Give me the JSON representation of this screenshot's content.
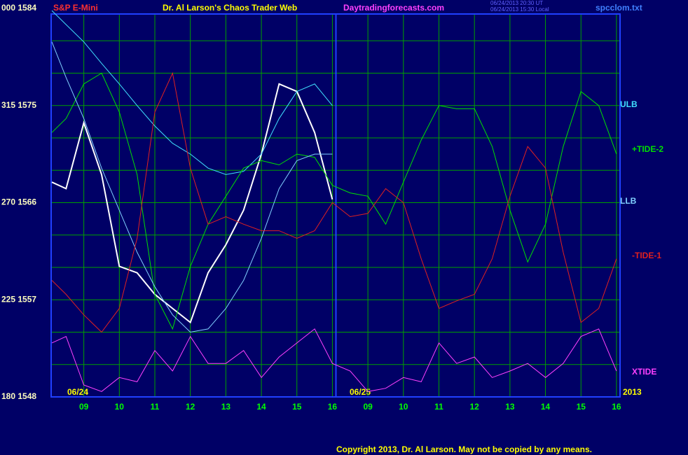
{
  "chart_data": {
    "type": "line",
    "header": {
      "symbol": "S&P E-Mini",
      "title": "Dr. Al Larson's Chaos Trader Web",
      "site": "Daytradingforecasts.com",
      "stamp_ut": "06/24/2013 20:30 UT",
      "stamp_local": "06/24/2013 15:30 Local",
      "file": "spcclom.txt"
    },
    "copyright": "Copyright 2013, Dr. Al Larson. May not be copied by any means.",
    "date_labels": [
      "06/24",
      "06/25",
      "2013"
    ],
    "x": [
      -0.9,
      -0.5,
      0,
      0.5,
      1,
      1.5,
      2,
      2.5,
      3,
      3.5,
      4,
      4.5,
      5,
      5.5,
      6,
      6.5,
      7,
      7.5,
      8,
      8.5,
      9,
      9.5,
      10,
      10.5,
      11,
      11.5,
      12,
      12.5,
      13,
      13.5,
      14,
      14.5,
      15
    ],
    "xlim": [
      -0.92,
      15.1
    ],
    "xticks": [
      {
        "value": 0,
        "label": "09"
      },
      {
        "value": 1,
        "label": "10"
      },
      {
        "value": 2,
        "label": "11"
      },
      {
        "value": 3,
        "label": "12"
      },
      {
        "value": 4,
        "label": "13"
      },
      {
        "value": 5,
        "label": "14"
      },
      {
        "value": 6,
        "label": "15"
      },
      {
        "value": 7,
        "label": "16"
      },
      {
        "value": 8,
        "label": "09"
      },
      {
        "value": 9,
        "label": "10"
      },
      {
        "value": 10,
        "label": "11"
      },
      {
        "value": 11,
        "label": "12"
      },
      {
        "value": 12,
        "label": "13"
      },
      {
        "value": 13,
        "label": "14"
      },
      {
        "value": 14,
        "label": "15"
      },
      {
        "value": 15,
        "label": "16"
      }
    ],
    "day_separator": 7.1,
    "ylim": [
      1548,
      1584
    ],
    "yticks": [
      {
        "value": 1584,
        "label": "000 1584"
      },
      {
        "value": 1575,
        "label": "315 1575"
      },
      {
        "value": 1566,
        "label": "270 1566"
      },
      {
        "value": 1557,
        "label": "225 1557"
      },
      {
        "value": 1548,
        "label": "180 1548"
      }
    ],
    "ygrid": [
      1581,
      1578,
      1575,
      1572,
      1569,
      1566,
      1563,
      1560,
      1557,
      1554,
      1551
    ],
    "grid": true,
    "series": [
      {
        "color": "#ffffff",
        "values": [
          1567.9,
          1567.3,
          1573.4,
          1568.6,
          1560.1,
          1559.5,
          1557.5,
          1556.2,
          1554.9,
          1559.5,
          1562.1,
          1565.3,
          1570.5,
          1577.0,
          1576.3,
          1572.5,
          1566.3,
          null,
          null,
          null,
          null,
          null,
          null,
          null,
          null,
          null,
          null,
          null,
          null,
          null,
          null,
          null,
          null
        ]
      },
      {
        "name": "ULB",
        "color": "#40e0ff",
        "values": [
          1583.8,
          1582.5,
          1580.9,
          1578.9,
          1577.0,
          1575.0,
          1573.1,
          1571.5,
          1570.5,
          1569.2,
          1568.6,
          1568.9,
          1570.5,
          1573.8,
          1576.3,
          1577.0,
          1575.0,
          null,
          null,
          null,
          null,
          null,
          null,
          null,
          null,
          null,
          null,
          null,
          null,
          null,
          null,
          null,
          null
        ]
      },
      {
        "name": "+TIDE-2",
        "color": "#00e000",
        "values": [
          1572.5,
          1573.8,
          1577.0,
          1578.0,
          1574.4,
          1568.6,
          1557.5,
          1554.3,
          1560.1,
          1564.0,
          1566.6,
          1569.2,
          1569.9,
          1569.5,
          1570.5,
          1570.2,
          1567.6,
          1566.9,
          1566.6,
          1564.0,
          1567.9,
          1571.8,
          1575.0,
          1574.7,
          1574.7,
          1571.2,
          1565.3,
          1560.5,
          1564.0,
          1571.2,
          1576.3,
          1575.0,
          1570.5
        ]
      },
      {
        "name": "LLB",
        "color": "#80d0ff",
        "values": [
          1580.9,
          1577.6,
          1573.8,
          1569.2,
          1565.3,
          1561.4,
          1558.2,
          1555.6,
          1554.0,
          1554.3,
          1556.2,
          1558.8,
          1562.7,
          1567.3,
          1569.9,
          1570.5,
          1570.5,
          null,
          null,
          null,
          null,
          null,
          null,
          null,
          null,
          null,
          null,
          null,
          null,
          null,
          null,
          null,
          null
        ]
      },
      {
        "name": "-TIDE-1",
        "color": "#e02020",
        "values": [
          1558.8,
          1557.5,
          1555.6,
          1554.0,
          1556.2,
          1562.7,
          1574.4,
          1578.0,
          1569.2,
          1564.0,
          1564.7,
          1564.0,
          1563.4,
          1563.4,
          1562.7,
          1563.4,
          1566.0,
          1564.7,
          1565.0,
          1567.3,
          1566.0,
          1560.8,
          1556.2,
          1556.9,
          1557.5,
          1560.8,
          1566.6,
          1571.2,
          1569.2,
          1561.4,
          1554.9,
          1556.2,
          1560.8
        ]
      },
      {
        "name": "XTIDE",
        "color": "#ff40ff",
        "values": [
          1553.0,
          1553.6,
          1549.1,
          1548.5,
          1549.8,
          1549.4,
          1552.3,
          1550.4,
          1553.6,
          1551.1,
          1551.1,
          1552.3,
          1549.8,
          1551.7,
          1553.0,
          1554.3,
          1551.1,
          1550.4,
          1548.5,
          1548.8,
          1549.8,
          1549.4,
          1553.0,
          1551.1,
          1551.7,
          1549.8,
          1550.4,
          1551.1,
          1549.8,
          1551.1,
          1553.6,
          1554.3,
          1550.4
        ]
      }
    ]
  }
}
